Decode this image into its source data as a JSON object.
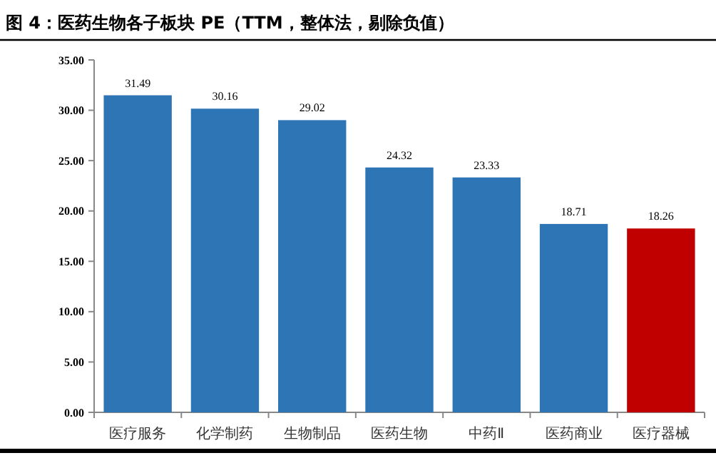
{
  "chart_data": {
    "type": "bar",
    "title": "图 4：医药生物各子板块 PE（TTM，整体法，剔除负值）",
    "categories": [
      "医疗服务",
      "化学制药",
      "生物制品",
      "医药生物",
      "中药Ⅱ",
      "医药商业",
      "医疗器械"
    ],
    "values": [
      31.49,
      30.16,
      29.02,
      24.32,
      23.33,
      18.71,
      18.26
    ],
    "colors": [
      "#2e75b6",
      "#2e75b6",
      "#2e75b6",
      "#2e75b6",
      "#2e75b6",
      "#2e75b6",
      "#c00000"
    ],
    "data_labels": true,
    "ylim": [
      0,
      35
    ],
    "yticks": [
      {
        "value": 0,
        "label": "0.00"
      },
      {
        "value": 5,
        "label": "5.00"
      },
      {
        "value": 10,
        "label": "10.00"
      },
      {
        "value": 15,
        "label": "15.00"
      },
      {
        "value": 20,
        "label": "20.00"
      },
      {
        "value": 25,
        "label": "25.00"
      },
      {
        "value": 30,
        "label": "30.00"
      },
      {
        "value": 35,
        "label": "35.00"
      }
    ],
    "grid": false
  }
}
